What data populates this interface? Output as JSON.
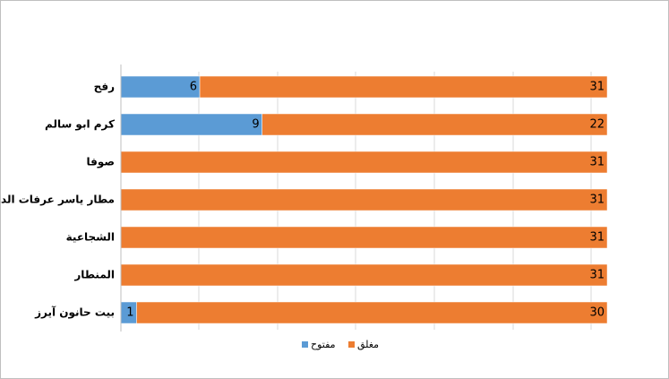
{
  "chart_data": {
    "type": "stacked-percent-bar",
    "orientation": "horizontal",
    "categories": [
      "رفح",
      "كرم ابو سالم",
      "صوفا",
      "مطار ياسر عرفات الدولي",
      "الشجاعية",
      "المنطار",
      "بيت حانون آيرز"
    ],
    "series": [
      {
        "name": "مفتوح",
        "color": "#5b9bd5",
        "values": [
          6,
          9,
          0,
          0,
          0,
          0,
          1
        ]
      },
      {
        "name": "مغلق",
        "color": "#ed7d31",
        "values": [
          31,
          22,
          31,
          31,
          31,
          31,
          30
        ]
      }
    ],
    "grid": true,
    "legend": "bottom"
  }
}
